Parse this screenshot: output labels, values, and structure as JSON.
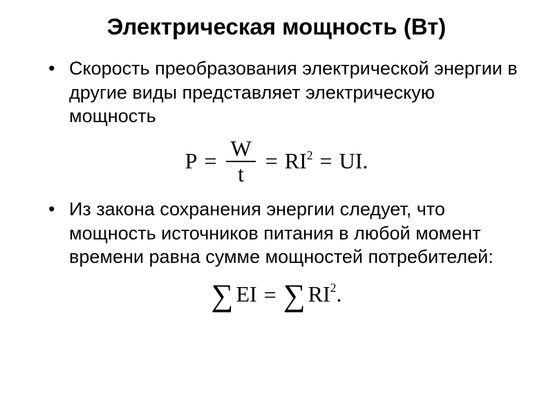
{
  "slide": {
    "title": "Электрическая мощность (Вт)",
    "title_fontsize": 33,
    "title_color": "#000000",
    "bullets": [
      "Скорость преобразования электрической энергии в другие виды представляет электрическую мощность",
      "Из закона сохранения энергии следует, что мощность источников питания в любой момент времени равна сумме мощностей потребителей:"
    ],
    "bullet_fontsize": 27,
    "bullet_marker": "•",
    "bullet_marker_color": "#000000",
    "formula1": {
      "lhs": "P",
      "frac_num": "W",
      "frac_den": "t",
      "rhs1_base": "RI",
      "rhs1_exp": "2",
      "rhs2": "UI.",
      "fontsize": 32,
      "color": "#000000"
    },
    "formula2": {
      "sigma": "∑",
      "lhs": "EI",
      "rhs_base": "RI",
      "rhs_exp": "2",
      "nbsp": ". ",
      "fontsize": 32,
      "color": "#000000"
    },
    "background_color": "#ffffff"
  }
}
